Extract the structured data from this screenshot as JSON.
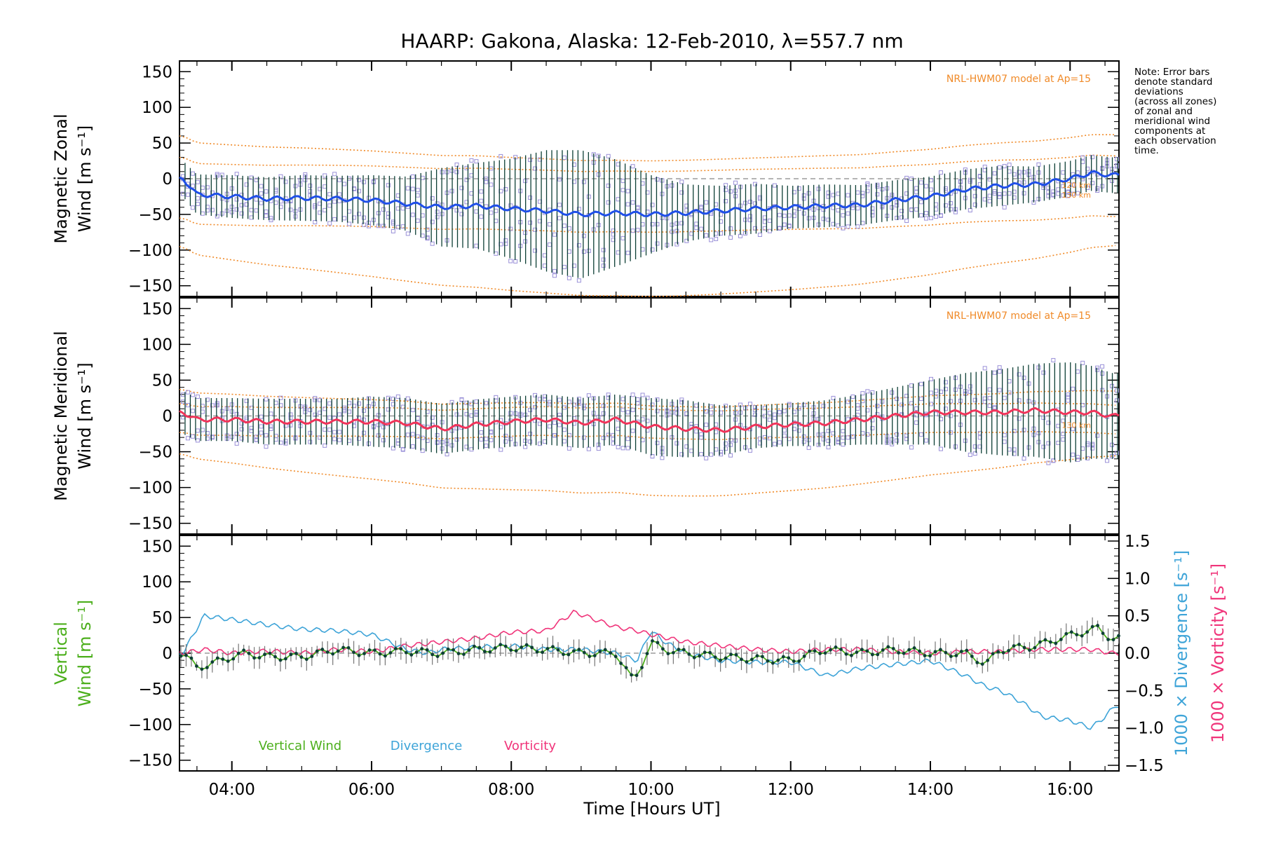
{
  "chart_data": {
    "title": "HAARP: Gakona,  Alaska: 12-Feb-2010, λ=557.7 nm",
    "xlabel": "Time [Hours UT]",
    "x_tick_labels": [
      "04:00",
      "06:00",
      "08:00",
      "10:00",
      "12:00",
      "14:00",
      "16:00"
    ],
    "x_ticks_hours": [
      4,
      6,
      8,
      10,
      12,
      14,
      16
    ],
    "xlim_hours": [
      3.25,
      16.7
    ],
    "note_lines": [
      "Note: Error bars",
      "denote standard",
      "deviations",
      "(across all zones)",
      "of zonal and",
      "meridional wind",
      "components at",
      "each observation",
      "time."
    ],
    "colors": {
      "zonal": "#1f4fe8",
      "meridional": "#f0345a",
      "vertical": "#4caf1c",
      "divergence": "#3ea4d8",
      "vorticity": "#f0347a",
      "model": "#f08a28",
      "scatter": "#9a90d8",
      "errbar": "#0d3f35"
    },
    "panels": [
      {
        "type": "line",
        "ylabel_lines": [
          "Magnetic Zonal",
          "Wind [m s⁻¹]"
        ],
        "ylim": [
          -165,
          165
        ],
        "y_ticks": [
          150,
          100,
          50,
          0,
          -50,
          -100,
          -150
        ],
        "model_label": "NRL-HWM07 model at Ap=15",
        "model_height_labels": [
          "120 km",
          "130 km"
        ],
        "series": [
          {
            "name": "Zonal Wind",
            "x": [
              3.3,
              3.5,
              4.0,
              4.5,
              5.0,
              5.5,
              6.0,
              6.5,
              7.0,
              7.5,
              8.0,
              8.5,
              9.0,
              9.5,
              10.0,
              10.5,
              11.0,
              11.5,
              12.0,
              12.5,
              13.0,
              13.5,
              14.0,
              14.5,
              15.0,
              15.5,
              16.0,
              16.3,
              16.6
            ],
            "y": [
              0,
              -22,
              -25,
              -28,
              -27,
              -28,
              -30,
              -35,
              -40,
              -38,
              -42,
              -45,
              -50,
              -48,
              -50,
              -48,
              -45,
              -42,
              -40,
              -38,
              -37,
              -30,
              -25,
              -15,
              -10,
              -8,
              0,
              8,
              5
            ]
          }
        ],
        "spread": [
          25,
          28,
          30,
          30,
          32,
          32,
          35,
          38,
          55,
          60,
          70,
          85,
          90,
          75,
          55,
          40,
          35,
          35,
          30,
          30,
          28,
          28,
          28,
          28,
          28,
          25,
          25,
          25,
          25
        ]
      },
      {
        "type": "line",
        "ylabel_lines": [
          "Magnetic Meridional",
          "Wind [m s⁻¹]"
        ],
        "ylim": [
          -165,
          165
        ],
        "y_ticks": [
          150,
          100,
          50,
          0,
          -50,
          -100,
          -150
        ],
        "model_label": "NRL-HWM07 model at Ap=15",
        "model_height_labels": [
          "130 km"
        ],
        "series": [
          {
            "name": "Meridional Wind",
            "x": [
              3.3,
              3.5,
              4.0,
              4.5,
              5.0,
              5.5,
              6.0,
              6.5,
              7.0,
              7.5,
              8.0,
              8.5,
              9.0,
              9.5,
              10.0,
              10.5,
              11.0,
              11.5,
              12.0,
              12.5,
              13.0,
              13.5,
              14.0,
              14.5,
              15.0,
              15.5,
              16.0,
              16.3,
              16.6
            ],
            "y": [
              5,
              -5,
              -5,
              -8,
              -8,
              -8,
              -8,
              -10,
              -18,
              -12,
              -8,
              -5,
              -10,
              -5,
              -15,
              -18,
              -20,
              -15,
              -12,
              -10,
              -5,
              0,
              5,
              5,
              5,
              8,
              5,
              5,
              0
            ]
          }
        ],
        "spread": [
          30,
          30,
          30,
          32,
          32,
          32,
          35,
          35,
          35,
          35,
          35,
          35,
          35,
          35,
          40,
          40,
          35,
          30,
          30,
          32,
          35,
          40,
          45,
          55,
          60,
          65,
          70,
          65,
          60
        ]
      },
      {
        "type": "line",
        "ylabel_lines": [
          "Vertical",
          "Wind [m s⁻¹]"
        ],
        "ylim": [
          -165,
          165
        ],
        "y_ticks": [
          150,
          100,
          50,
          0,
          -50,
          -100,
          -150
        ],
        "y2_label": "1000 × Divergence [s⁻¹]",
        "y3_label": "1000 × Vorticity [s⁻¹]",
        "y2lim": [
          -1.575,
          1.575
        ],
        "y2_ticks": [
          1.5,
          1.0,
          0.5,
          0.0,
          -0.5,
          -1.0,
          -1.5
        ],
        "y2_tick_labels": [
          "1.5",
          "1.0",
          "0.5",
          "0.0",
          "−0.5",
          "−1.0",
          "−1.5"
        ],
        "legend_labels": [
          "Vertical Wind",
          "Divergence",
          "Vorticity"
        ],
        "series": [
          {
            "name": "Vertical Wind",
            "x": [
              3.3,
              3.5,
              3.7,
              4.0,
              4.2,
              4.5,
              5.0,
              5.5,
              6.0,
              6.5,
              7.0,
              7.5,
              8.0,
              8.5,
              9.0,
              9.5,
              9.75,
              9.85,
              10.0,
              10.2,
              10.5,
              11.0,
              11.5,
              12.0,
              12.5,
              13.0,
              13.5,
              14.0,
              14.5,
              14.8,
              15.0,
              15.5,
              16.0,
              16.4,
              16.6
            ],
            "y": [
              0,
              -20,
              -15,
              -5,
              0,
              -5,
              -5,
              5,
              0,
              3,
              0,
              5,
              8,
              5,
              0,
              0,
              -40,
              -20,
              15,
              5,
              0,
              -5,
              -8,
              -10,
              5,
              0,
              5,
              0,
              0,
              -15,
              5,
              10,
              25,
              35,
              20
            ]
          },
          {
            "name": "Divergence",
            "axis": "y2",
            "x": [
              3.3,
              3.6,
              4.0,
              4.5,
              5.0,
              5.5,
              6.0,
              6.5,
              6.8,
              7.0,
              7.5,
              8.0,
              8.5,
              9.0,
              9.5,
              9.8,
              10.0,
              10.2,
              10.5,
              11.0,
              11.5,
              12.0,
              12.5,
              13.0,
              13.5,
              14.0,
              14.5,
              14.8,
              15.0,
              15.3,
              15.6,
              16.0,
              16.3,
              16.5,
              16.65
            ],
            "y": [
              0.0,
              0.5,
              0.45,
              0.38,
              0.32,
              0.3,
              0.25,
              0.05,
              0.0,
              0.05,
              0.08,
              0.1,
              0.05,
              0.05,
              0.0,
              -0.1,
              0.3,
              0.15,
              0.0,
              -0.1,
              -0.12,
              -0.12,
              -0.3,
              -0.2,
              -0.15,
              -0.1,
              -0.3,
              -0.45,
              -0.5,
              -0.65,
              -0.85,
              -0.9,
              -1.0,
              -0.85,
              -0.7
            ]
          },
          {
            "name": "Vorticity",
            "axis": "y2",
            "x": [
              3.3,
              3.6,
              4.0,
              4.5,
              5.0,
              5.5,
              6.0,
              6.5,
              7.0,
              7.5,
              8.0,
              8.5,
              8.9,
              9.2,
              9.5,
              9.8,
              10.0,
              10.5,
              11.0,
              11.5,
              12.0,
              12.5,
              13.0,
              13.5,
              14.0,
              14.5,
              15.0,
              15.5,
              16.0,
              16.3,
              16.6
            ],
            "y": [
              0.0,
              0.05,
              0.0,
              0.03,
              0.0,
              0.05,
              0.02,
              0.1,
              0.15,
              0.2,
              0.28,
              0.3,
              0.55,
              0.45,
              0.35,
              0.3,
              0.25,
              0.15,
              0.1,
              0.05,
              0.02,
              0.05,
              0.05,
              0.02,
              0.0,
              0.02,
              0.02,
              0.05,
              0.05,
              0.05,
              0.0
            ]
          }
        ]
      }
    ]
  }
}
